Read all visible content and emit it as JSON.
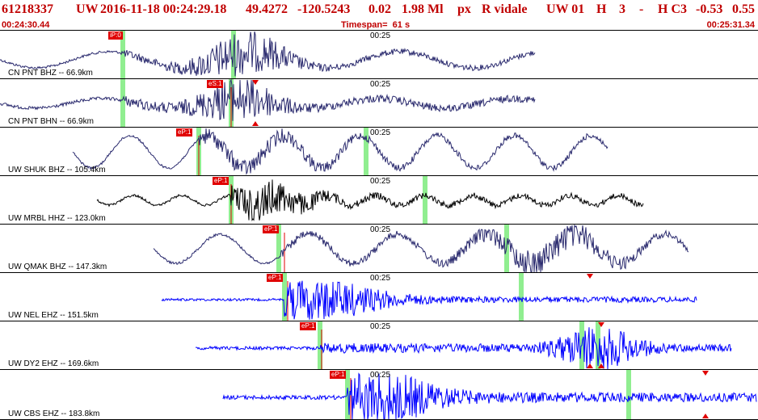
{
  "header": {
    "event_id": "61218337",
    "network": "UW",
    "datetime": "2016-11-18 00:24:29.18",
    "lat": "49.4272",
    "lon": "-120.5243",
    "depth": "0.02",
    "magnitude": "1.98 Ml",
    "type": "px",
    "author": "R vidale",
    "source": "UW 01",
    "flag1": "H",
    "count": "3",
    "dash": "-",
    "flag2": "H C3",
    "val1": "-0.53",
    "val2": "0.55",
    "start_time": "00:24:30.44",
    "timespan": "Timespan=  61 s",
    "end_time": "00:25:31.34"
  },
  "colors": {
    "header_red": "#c00000",
    "pick_red": "#e00000",
    "green_mark": "#90ee90",
    "trace_navy": "#2a2a6e",
    "trace_black": "#000000",
    "trace_blue": "#0000ff"
  },
  "traces": [
    {
      "label": "CN PNT BHZ -- 66.9km",
      "time_label": "00:25",
      "pick": "iP:0",
      "color": "navy"
    },
    {
      "label": "CN PNT BHN -- 66.9km",
      "time_label": "00:25",
      "pick": "eS:1",
      "color": "navy"
    },
    {
      "label": "UW SHUK BHZ -- 105.4km",
      "time_label": "00:25",
      "pick": "eP:1",
      "color": "navy"
    },
    {
      "label": "UW MRBL HHZ -- 123.0km",
      "time_label": "00:25",
      "pick": "eP:1",
      "color": "black"
    },
    {
      "label": "UW QMAK BHZ -- 147.3km",
      "time_label": "00:25",
      "pick": "eP:1",
      "color": "navy"
    },
    {
      "label": "UW NEL EHZ -- 151.5km",
      "time_label": "00:25",
      "pick": "eP:1",
      "color": "blue"
    },
    {
      "label": "UW DY2 EHZ -- 169.6km",
      "time_label": "00:25",
      "pick": "eP:1",
      "color": "blue"
    },
    {
      "label": "UW CBS EHZ -- 183.8km",
      "time_label": "00:25",
      "pick": "eP:1",
      "color": "blue"
    }
  ]
}
